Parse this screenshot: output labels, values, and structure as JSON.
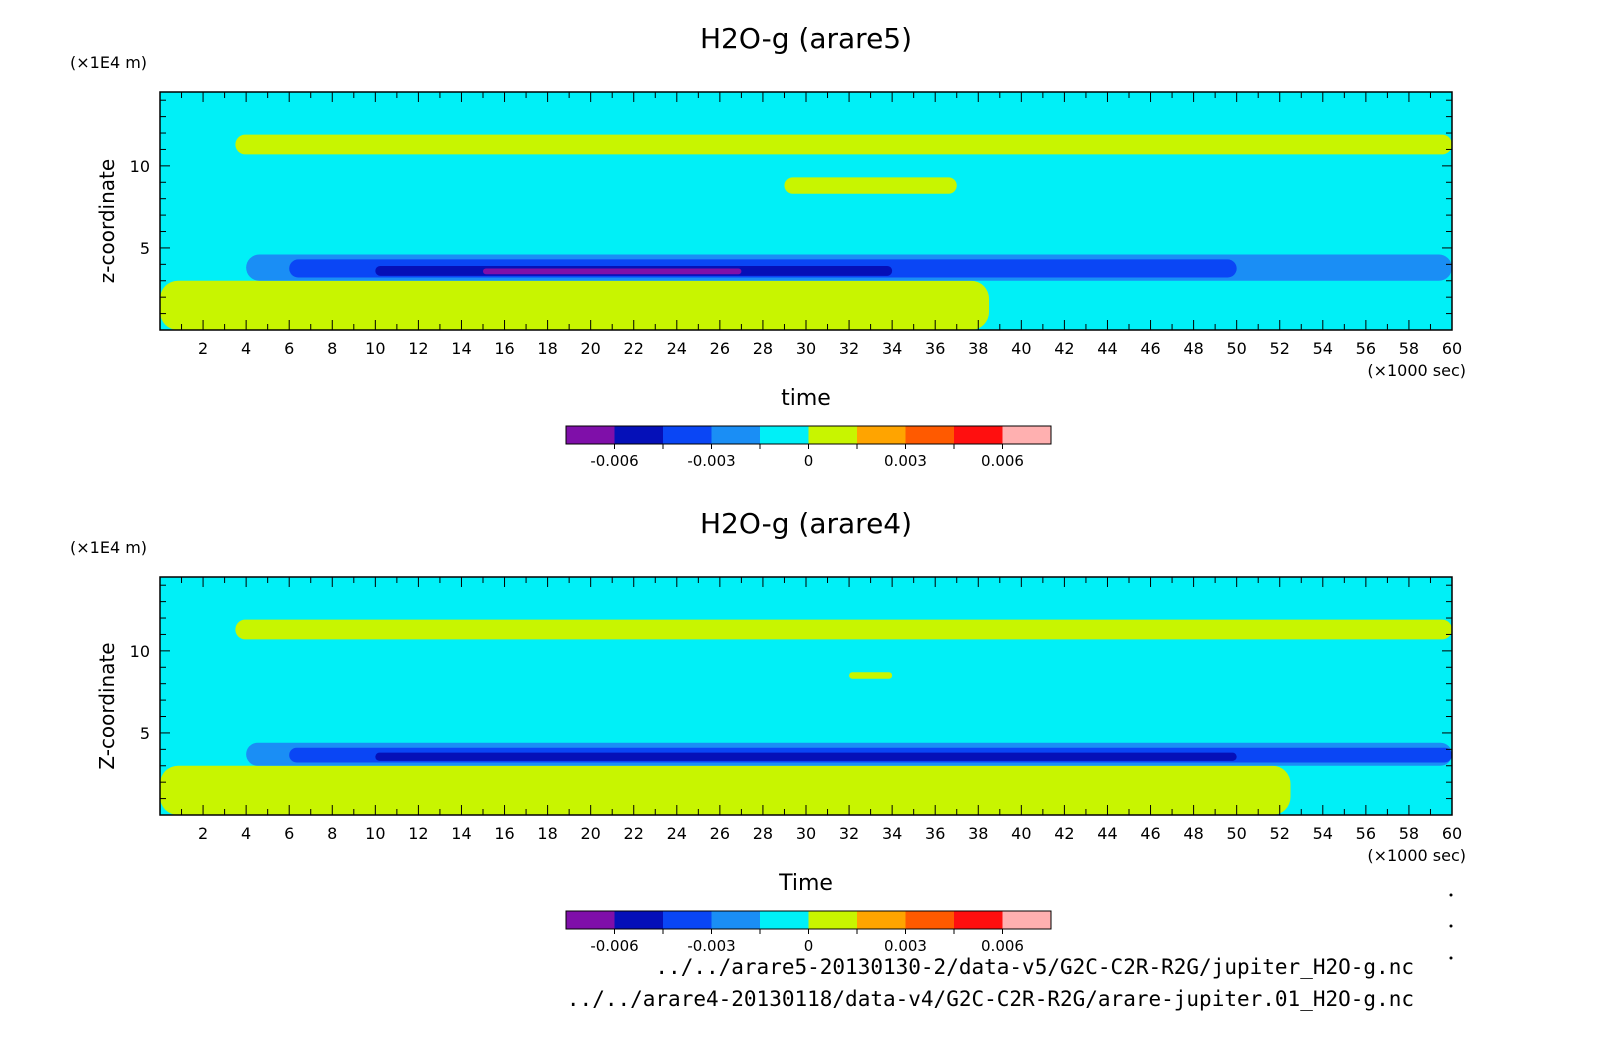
{
  "palette": [
    "#7f0fa9",
    "#0510b8",
    "#0a46f5",
    "#1a8ef5",
    "#00f0f7",
    "#c8f500",
    "#ffa400",
    "#ff5a00",
    "#ff0f0f",
    "#ffb0b0"
  ],
  "colorbar_ticks": [
    "-0.006",
    "-0.003",
    "0",
    "0.003",
    "0.006"
  ],
  "footer": [
    "../../arare5-20130130-2/data-v5/G2C-C2R-R2G/jupiter_H2O-g.nc",
    "../../arare4-20130118/data-v4/G2C-C2R-R2G/arare-jupiter.01_H2O-g.nc"
  ],
  "chart_data": [
    {
      "type": "heatmap",
      "title": "H2O-g (arare5)",
      "xlabel": "time",
      "ylabel": "z-coordinate",
      "x_unit": "(×1000 sec)",
      "y_unit": "(×1E4 m)",
      "xlim": [
        0,
        60
      ],
      "ylim": [
        0,
        14.5
      ],
      "xticks": [
        2,
        4,
        6,
        8,
        10,
        12,
        14,
        16,
        18,
        20,
        22,
        24,
        26,
        28,
        30,
        32,
        34,
        36,
        38,
        40,
        42,
        44,
        46,
        48,
        50,
        52,
        54,
        56,
        58,
        60
      ],
      "yticks": [
        5,
        10
      ],
      "colorbar_levels": [
        -0.007,
        -0.006,
        -0.005,
        -0.004,
        -0.003,
        -0.002,
        0,
        0.002,
        0.003,
        0.005,
        0.006,
        0.007
      ],
      "contour_regions": [
        {
          "level": 0.001,
          "x": [
            3.5,
            60
          ],
          "y": [
            10.7,
            11.9
          ]
        },
        {
          "level": 0.001,
          "x": [
            29,
            37
          ],
          "y": [
            8.3,
            9.3
          ]
        },
        {
          "level": 0.001,
          "x": [
            0,
            38.5
          ],
          "y": [
            0,
            3.0
          ]
        },
        {
          "level": -0.001,
          "x": [
            4,
            60
          ],
          "y": [
            3.0,
            4.6
          ]
        },
        {
          "level": -0.002,
          "x": [
            6,
            50
          ],
          "y": [
            3.2,
            4.3
          ]
        },
        {
          "level": -0.004,
          "x": [
            10,
            34
          ],
          "y": [
            3.3,
            3.9
          ]
        },
        {
          "level": -0.006,
          "x": [
            15,
            27
          ],
          "y": [
            3.4,
            3.75
          ]
        }
      ]
    },
    {
      "type": "heatmap",
      "title": "H2O-g (arare4)",
      "xlabel": "Time",
      "ylabel": "Z-coordinate",
      "x_unit": "(×1000 sec)",
      "y_unit": "(×1E4 m)",
      "xlim": [
        0,
        60
      ],
      "ylim": [
        0,
        14.5
      ],
      "xticks": [
        2,
        4,
        6,
        8,
        10,
        12,
        14,
        16,
        18,
        20,
        22,
        24,
        26,
        28,
        30,
        32,
        34,
        36,
        38,
        40,
        42,
        44,
        46,
        48,
        50,
        52,
        54,
        56,
        58,
        60
      ],
      "yticks": [
        5,
        10
      ],
      "colorbar_levels": [
        -0.007,
        -0.006,
        -0.005,
        -0.004,
        -0.003,
        -0.002,
        0,
        0.002,
        0.003,
        0.005,
        0.006,
        0.007
      ],
      "contour_regions": [
        {
          "level": 0.001,
          "x": [
            3.5,
            60
          ],
          "y": [
            10.7,
            11.9
          ]
        },
        {
          "level": 0.001,
          "x": [
            32,
            34
          ],
          "y": [
            8.3,
            8.7
          ]
        },
        {
          "level": 0.001,
          "x": [
            0,
            52.5
          ],
          "y": [
            0,
            3.0
          ]
        },
        {
          "level": -0.001,
          "x": [
            4,
            60
          ],
          "y": [
            3.0,
            4.4
          ]
        },
        {
          "level": -0.002,
          "x": [
            6,
            60
          ],
          "y": [
            3.2,
            4.1
          ]
        },
        {
          "level": -0.004,
          "x": [
            10,
            50
          ],
          "y": [
            3.3,
            3.8
          ]
        }
      ]
    }
  ]
}
